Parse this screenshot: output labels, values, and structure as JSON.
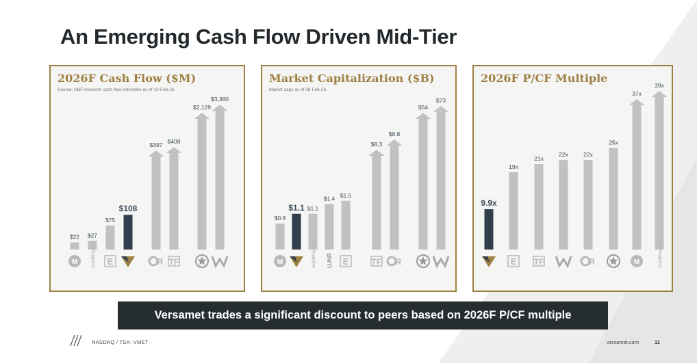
{
  "page": {
    "title": "An Emerging Cash Flow Driven Mid-Tier",
    "banner": "Versamet trades a significant discount to peers based on 2026F P/CF multiple",
    "footer_left": "NASDAQ / TSX: VMET",
    "footer_right": "versamet.com",
    "page_number": "11"
  },
  "colors": {
    "highlight": "#2f3f4c",
    "peer": "#c1c1c1",
    "accent": "#9e8044",
    "label": "#3e4d59"
  },
  "chart_data": [
    {
      "type": "bar",
      "title": "2026F Cash Flow ($M)",
      "subtitle": "Source: NBF research cash flow estimates as of 10-Feb-26",
      "categories": [
        "Metalla",
        "Gold Royalty",
        "Elemental Altus",
        "Versamet",
        "Osisko Gold Royalties",
        "Triple Flag",
        "Franco-Nevada",
        "Wheaton"
      ],
      "category_icons": [
        "metalla-icon",
        "gold-royalty-icon",
        "elemental-icon",
        "versamet-icon",
        "osisko-icon",
        "triple-flag-icon",
        "franco-nevada-icon",
        "wheaton-icon"
      ],
      "values": [
        22,
        27,
        75,
        108,
        397,
        408,
        2129,
        3380
      ],
      "labels": [
        "$22",
        "$27",
        "$75",
        "$108",
        "$397",
        "$408",
        "$2,129",
        "$3,380"
      ],
      "highlight_index": 3,
      "arrows": [
        false,
        false,
        false,
        false,
        true,
        true,
        true,
        true
      ],
      "scale_note": "broken axis"
    },
    {
      "type": "bar",
      "title": "Market Capitalization ($B)",
      "subtitle": "Market caps as of 28-Feb-26",
      "categories": [
        "Metalla",
        "Versamet",
        "Gold Royalty",
        "Lunr Royalties",
        "Elemental Altus",
        "Triple Flag",
        "Osisko Gold Royalties",
        "Franco-Nevada",
        "Wheaton"
      ],
      "category_icons": [
        "metalla-icon",
        "versamet-icon",
        "gold-royalty-icon",
        "lunr-icon",
        "elemental-icon",
        "triple-flag-icon",
        "osisko-icon",
        "franco-nevada-icon",
        "wheaton-icon"
      ],
      "values": [
        0.8,
        1.1,
        1.1,
        1.4,
        1.5,
        8.3,
        8.8,
        54,
        73
      ],
      "labels": [
        "$0.8",
        "$1.1",
        "$1.1",
        "$1.4",
        "$1.5",
        "$8.3",
        "$8.8",
        "$54",
        "$73"
      ],
      "highlight_index": 1,
      "arrows": [
        false,
        false,
        false,
        false,
        false,
        true,
        true,
        true,
        true
      ],
      "scale_note": "broken axis"
    },
    {
      "type": "bar",
      "title": "2026F P/CF Multiple",
      "subtitle": "",
      "categories": [
        "Versamet",
        "Elemental Altus",
        "Triple Flag",
        "Wheaton",
        "Osisko Gold Royalties",
        "Franco-Nevada",
        "Metalla",
        "Gold Royalty"
      ],
      "category_icons": [
        "versamet-icon",
        "elemental-icon",
        "triple-flag-icon",
        "wheaton-icon",
        "osisko-icon",
        "franco-nevada-icon",
        "metalla-icon",
        "gold-royalty-icon"
      ],
      "values": [
        9.9,
        19,
        21,
        22,
        22,
        25,
        37,
        39
      ],
      "labels": [
        "9.9x",
        "19x",
        "21x",
        "22x",
        "22x",
        "25x",
        "37x",
        "39x"
      ],
      "highlight_index": 0,
      "arrows": [
        false,
        false,
        false,
        false,
        false,
        false,
        true,
        true
      ],
      "ylim": [
        0,
        45
      ]
    }
  ]
}
